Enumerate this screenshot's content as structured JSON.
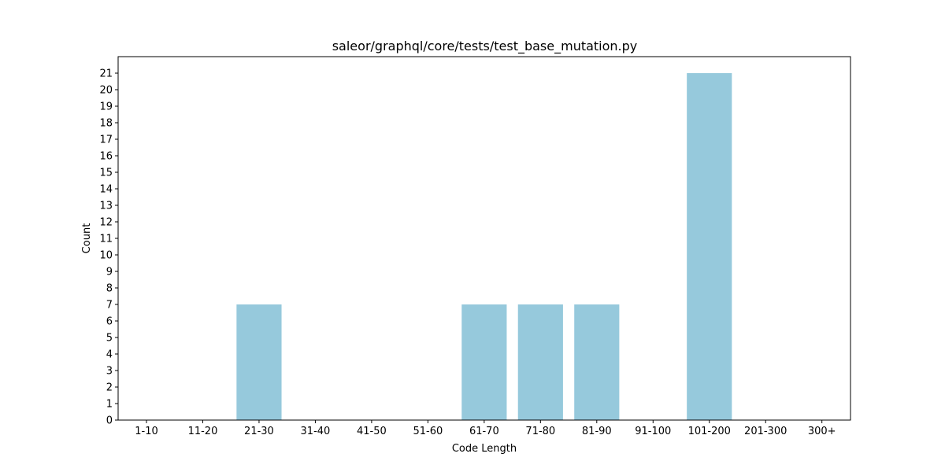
{
  "chart_data": {
    "type": "bar",
    "title": "saleor/graphql/core/tests/test_base_mutation.py",
    "xlabel": "Code Length",
    "ylabel": "Count",
    "categories": [
      "1-10",
      "11-20",
      "21-30",
      "31-40",
      "41-50",
      "51-60",
      "61-70",
      "71-80",
      "81-90",
      "91-100",
      "101-200",
      "201-300",
      "300+"
    ],
    "values": [
      0,
      0,
      7,
      0,
      0,
      0,
      7,
      7,
      7,
      0,
      21,
      0,
      0
    ],
    "ylim": [
      0,
      22
    ],
    "yticks": [
      0,
      1,
      2,
      3,
      4,
      5,
      6,
      7,
      8,
      9,
      10,
      11,
      12,
      13,
      14,
      15,
      16,
      17,
      18,
      19,
      20,
      21
    ],
    "bar_color": "#96c9dc",
    "grid": false,
    "legend": "none"
  }
}
